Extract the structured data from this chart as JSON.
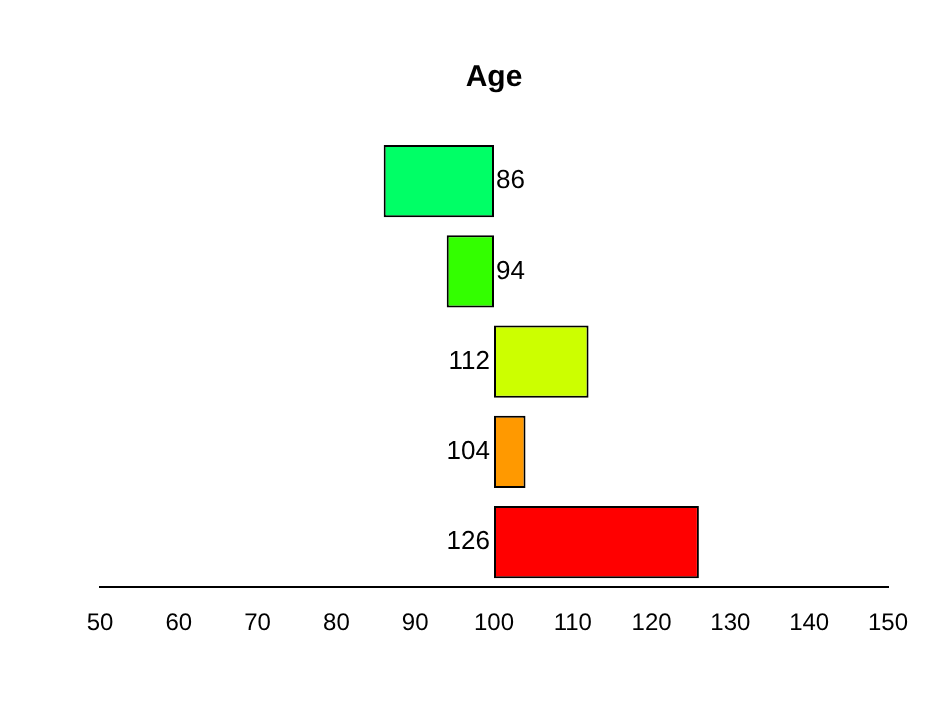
{
  "chart_data": {
    "type": "bar",
    "title": "Age",
    "orientation": "horizontal",
    "categories": [
      null,
      null,
      null,
      null,
      null
    ],
    "base": [
      100,
      100,
      100,
      100,
      100
    ],
    "values": [
      -14,
      -6,
      12,
      4,
      26
    ],
    "value_labels": [
      "86",
      "94",
      "112",
      "104",
      "126"
    ],
    "colors": [
      "#00ff66",
      "#33ff00",
      "#ccff00",
      "#ff9900",
      "#ff0000"
    ],
    "xlim": [
      50,
      150
    ],
    "xticks": [
      50,
      60,
      70,
      80,
      90,
      100,
      110,
      120,
      130,
      140,
      150
    ],
    "grid": false,
    "legend": false
  }
}
